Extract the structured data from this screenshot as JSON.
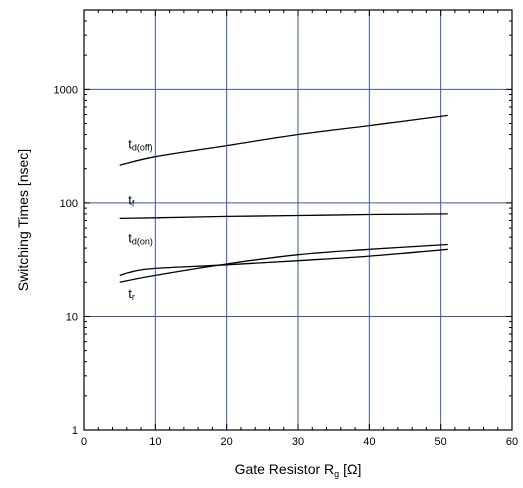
{
  "chart_data": {
    "type": "line",
    "xlabel": {
      "main": "Gate Resistor R",
      "sub": "g",
      "unit": "[Ω]"
    },
    "ylabel": "Switching Times [nsec]",
    "xlim": [
      0,
      60
    ],
    "ylim": [
      1,
      5000
    ],
    "y_scale": "log",
    "grid": true,
    "x_ticks": [
      "0",
      "10",
      "20",
      "30",
      "40",
      "50",
      "60"
    ],
    "y_ticks": [
      "1",
      "10",
      "100",
      "1000"
    ],
    "series": [
      {
        "name": "td(off)",
        "label_main": "t",
        "label_sub": "d(off)",
        "x": [
          5,
          10,
          20,
          30,
          40,
          51
        ],
        "y": [
          215,
          255,
          320,
          400,
          480,
          590
        ]
      },
      {
        "name": "tf",
        "label_main": "t",
        "label_sub": "f",
        "x": [
          5,
          10,
          20,
          30,
          40,
          51
        ],
        "y": [
          73,
          74,
          76,
          77.5,
          79,
          80
        ]
      },
      {
        "name": "td(on)",
        "label_main": "t",
        "label_sub": "d(on)",
        "x": [
          5,
          7,
          10,
          20,
          30,
          40,
          51
        ],
        "y": [
          23,
          25,
          26.5,
          28.5,
          31,
          34,
          39
        ]
      },
      {
        "name": "tr",
        "label_main": "t",
        "label_sub": "r",
        "x": [
          5,
          10,
          20,
          30,
          40,
          51
        ],
        "y": [
          20,
          23,
          29,
          35,
          39,
          43
        ]
      }
    ]
  }
}
